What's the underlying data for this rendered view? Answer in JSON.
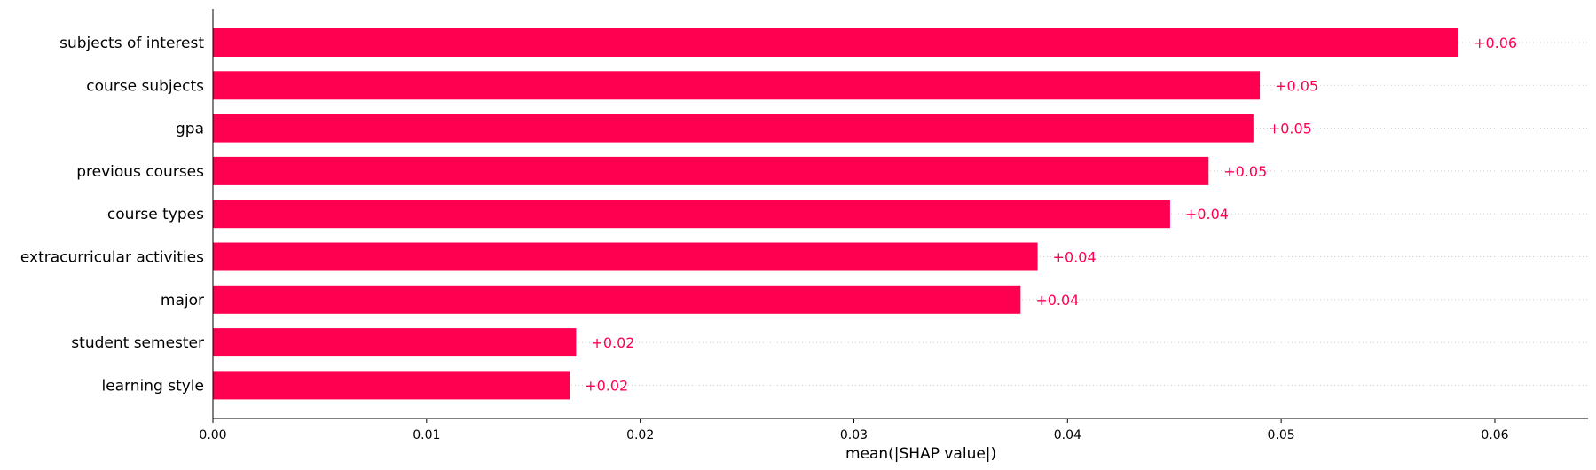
{
  "chart_data": {
    "type": "bar",
    "orientation": "horizontal",
    "categories": [
      "subjects of interest",
      "course subjects",
      "gpa",
      "previous courses",
      "course types",
      "extracurricular activities",
      "major",
      "student semester",
      "learning style"
    ],
    "values": [
      0.0583,
      0.049,
      0.0487,
      0.0466,
      0.0448,
      0.0386,
      0.0378,
      0.017,
      0.0167
    ],
    "value_labels": [
      "+0.06",
      "+0.05",
      "+0.05",
      "+0.05",
      "+0.04",
      "+0.04",
      "+0.04",
      "+0.02",
      "+0.02"
    ],
    "xlabel": "mean(|SHAP value|)",
    "ylabel": "",
    "title": "",
    "xlim": [
      0,
      0.0642
    ],
    "x_ticks": [
      0.0,
      0.01,
      0.02,
      0.03,
      0.04,
      0.05,
      0.06
    ],
    "x_tick_labels": [
      "0.00",
      "0.01",
      "0.02",
      "0.03",
      "0.04",
      "0.05",
      "0.06"
    ],
    "grid": "dotted horizontal guide lines per row",
    "legend": "none",
    "colors": {
      "bar": "#ff0051",
      "value_text": "#ff0051",
      "guide": "#cccccc",
      "axis": "#000000"
    }
  }
}
